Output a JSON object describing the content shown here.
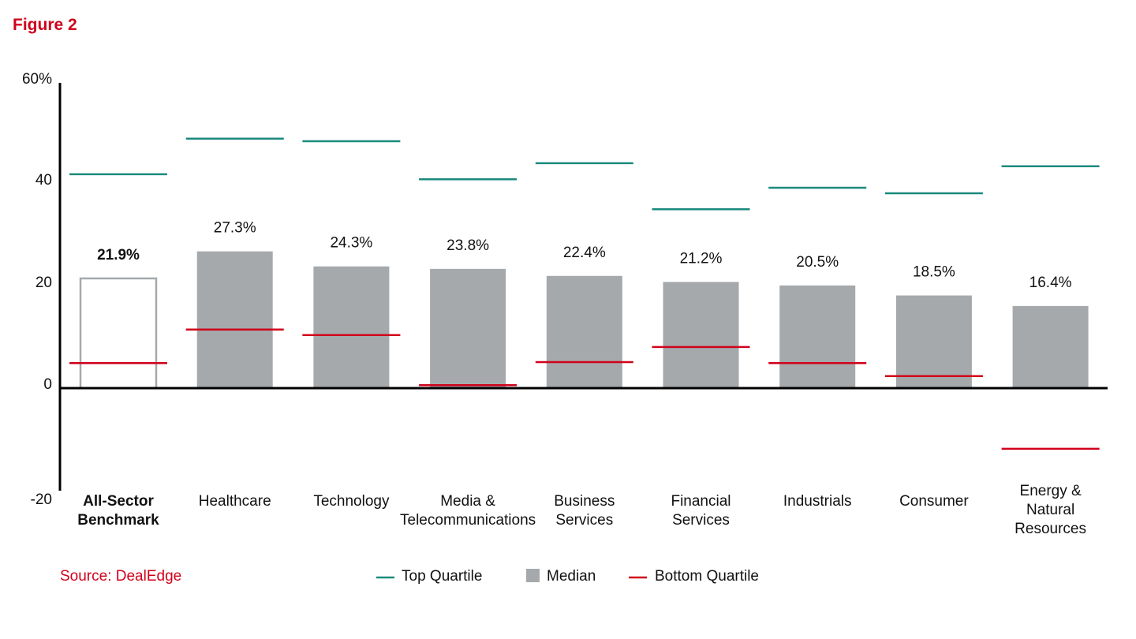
{
  "figure_label": "Figure 2",
  "source": "Source: DealEdge",
  "colors": {
    "top": "#1b8a7e",
    "bottom": "#d0021b",
    "median": "#a5a9ac",
    "benchmark_outline": "#a5a9ac",
    "accent": "#d0021b"
  },
  "chart_data": {
    "type": "bar",
    "title": "",
    "xlabel": "",
    "ylabel": "",
    "ylim": [
      -20,
      60
    ],
    "yticks": [
      60,
      40,
      20,
      0,
      -20
    ],
    "ytick_labels": [
      "60%",
      "40",
      "20",
      "0",
      "-20"
    ],
    "grid": false,
    "legend_position": "bottom",
    "categories": [
      [
        "All-Sector",
        "Benchmark"
      ],
      [
        "Healthcare"
      ],
      [
        "Technology"
      ],
      [
        "Media &",
        "Telecommunications"
      ],
      [
        "Business",
        "Services"
      ],
      [
        "Financial",
        "Services"
      ],
      [
        "Industrials"
      ],
      [
        "Consumer"
      ],
      [
        "Energy &",
        "Natural",
        "Resources"
      ]
    ],
    "series": [
      {
        "name": "Top Quartile",
        "values": [
          42.7,
          49.8,
          49.3,
          41.7,
          44.9,
          35.7,
          40.0,
          38.9,
          44.3
        ]
      },
      {
        "name": "Median",
        "values": [
          21.9,
          27.3,
          24.3,
          23.8,
          22.4,
          21.2,
          20.5,
          18.5,
          16.4
        ]
      },
      {
        "name": "Bottom Quartile",
        "values": [
          5.0,
          11.7,
          10.6,
          0.6,
          5.2,
          8.2,
          5.0,
          2.4,
          -12.1
        ]
      }
    ],
    "data_labels": [
      "21.9%",
      "27.3%",
      "24.3%",
      "23.8%",
      "22.4%",
      "21.2%",
      "20.5%",
      "18.5%",
      "16.4%"
    ],
    "highlight_index": 0
  }
}
